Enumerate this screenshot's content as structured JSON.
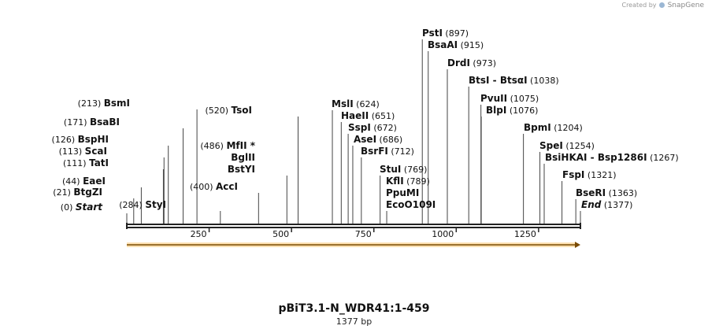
{
  "credit": {
    "prefix": "Created by",
    "brand": "SnapGene"
  },
  "title": "pBiT3.1-N_WDR41:1-459",
  "length_label": "1377 bp",
  "sequence_length": 1377,
  "ticks": [
    {
      "value": 250,
      "label": "250"
    },
    {
      "value": 500,
      "label": "500"
    },
    {
      "value": 750,
      "label": "750"
    },
    {
      "value": 1000,
      "label": "1000"
    },
    {
      "value": 1250,
      "label": "1250"
    }
  ],
  "feature": {
    "start": 0,
    "end": 1377,
    "direction": "forward",
    "color": "#f5a623"
  },
  "colors": {
    "backbone": "#222222",
    "leader": "#444444",
    "feature": "#f5a623"
  },
  "sites": [
    {
      "name": "Start",
      "pos": "(0)",
      "loc": 0,
      "label_side": "left",
      "italic": true
    },
    {
      "name": "BtgZI",
      "pos": "(21)",
      "loc": 21,
      "label_side": "left"
    },
    {
      "name": "EaeI",
      "pos": "(44)",
      "loc": 44,
      "label_side": "left"
    },
    {
      "name": "TatI",
      "pos": "(111)",
      "loc": 111,
      "label_side": "left"
    },
    {
      "name": "ScaI",
      "pos": "(113)",
      "loc": 113,
      "label_side": "left"
    },
    {
      "name": "BspHI",
      "pos": "(126)",
      "loc": 126,
      "label_side": "left"
    },
    {
      "name": "BsaBI",
      "pos": "(171)",
      "loc": 171,
      "label_side": "left"
    },
    {
      "name": "BsmI",
      "pos": "(213)",
      "loc": 213,
      "label_side": "left"
    },
    {
      "name": "StyI",
      "pos": "(284)",
      "loc": 284,
      "label_side": "left"
    },
    {
      "name": "AccI",
      "pos": "(400)",
      "loc": 400,
      "label_side": "left"
    },
    {
      "name": "MfII",
      "pos": "(486)",
      "loc": 486,
      "label_side": "left",
      "star": "*"
    },
    {
      "name": "BglII",
      "pos": "",
      "loc": 486,
      "label_side": "left"
    },
    {
      "name": "BstYI",
      "pos": "",
      "loc": 486,
      "label_side": "left"
    },
    {
      "name": "TsoI",
      "pos": "(520)",
      "loc": 520,
      "label_side": "left"
    },
    {
      "name": "MslI",
      "pos": "(624)",
      "loc": 624,
      "label_side": "right"
    },
    {
      "name": "HaeII",
      "pos": "(651)",
      "loc": 651,
      "label_side": "right"
    },
    {
      "name": "SspI",
      "pos": "(672)",
      "loc": 672,
      "label_side": "right"
    },
    {
      "name": "AseI",
      "pos": "(686)",
      "loc": 686,
      "label_side": "right"
    },
    {
      "name": "BsrFI",
      "pos": "(712)",
      "loc": 712,
      "label_side": "right"
    },
    {
      "name": "StuI",
      "pos": "(769)",
      "loc": 769,
      "label_side": "right"
    },
    {
      "name": "KflI",
      "pos": "(789)",
      "loc": 789,
      "label_side": "right"
    },
    {
      "name": "PpuMI",
      "pos": "",
      "loc": 789,
      "label_side": "right"
    },
    {
      "name": "EcoO109I",
      "pos": "",
      "loc": 789,
      "label_side": "right"
    },
    {
      "name": "PstI",
      "pos": "(897)",
      "loc": 897,
      "label_side": "right"
    },
    {
      "name": "BsaAI",
      "pos": "(915)",
      "loc": 915,
      "label_side": "right"
    },
    {
      "name": "DrdI",
      "pos": "(973)",
      "loc": 973,
      "label_side": "right"
    },
    {
      "name": "BtsI - BtsαI",
      "pos": "(1038)",
      "loc": 1038,
      "label_side": "right"
    },
    {
      "name": "PvuII",
      "pos": "(1075)",
      "loc": 1075,
      "label_side": "right"
    },
    {
      "name": "BlpI",
      "pos": "(1076)",
      "loc": 1076,
      "label_side": "right"
    },
    {
      "name": "BpmI",
      "pos": "(1204)",
      "loc": 1204,
      "label_side": "right"
    },
    {
      "name": "SpeI",
      "pos": "(1254)",
      "loc": 1254,
      "label_side": "right"
    },
    {
      "name": "BsiHKAI - Bsp1286I",
      "pos": "(1267)",
      "loc": 1267,
      "label_side": "right"
    },
    {
      "name": "FspI",
      "pos": "(1321)",
      "loc": 1321,
      "label_side": "right"
    },
    {
      "name": "BseRI",
      "pos": "(1363)",
      "loc": 1363,
      "label_side": "right"
    },
    {
      "name": "End",
      "pos": "(1377)",
      "loc": 1377,
      "label_side": "right",
      "italic": true
    }
  ]
}
